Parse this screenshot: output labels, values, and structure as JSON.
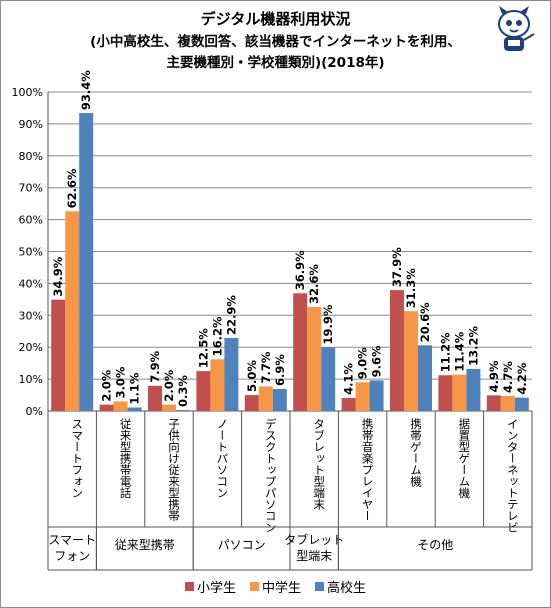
{
  "chart_data": {
    "type": "bar",
    "title": "デジタル機器利用状況",
    "subtitle_lines": [
      "(小中高校生、複数回答、該当機器でインターネットを利用、",
      "主要機種別・学校種類別)(2018年)"
    ],
    "ylim": [
      0,
      100
    ],
    "y_ticks": [
      "0%",
      "10%",
      "20%",
      "30%",
      "40%",
      "50%",
      "60%",
      "70%",
      "80%",
      "90%",
      "100%"
    ],
    "grid": true,
    "legend_position": "bottom",
    "categories": [
      "スマートフォン",
      "従来型携帯電話",
      "子供向け従来型携帯",
      "ノートパソコン",
      "デスクトップパソコン",
      "タブレット型端末",
      "携帯音楽プレイヤー",
      "携帯ゲーム機",
      "据置型ゲーム機",
      "インターネットテレビ"
    ],
    "groups": [
      {
        "label": "スマート\nフォン",
        "start": 0,
        "end": 0
      },
      {
        "label": "従来型携帯",
        "start": 1,
        "end": 2
      },
      {
        "label": "パソコン",
        "start": 3,
        "end": 4
      },
      {
        "label": "タブレット\n型端末",
        "start": 5,
        "end": 5
      },
      {
        "label": "その他",
        "start": 6,
        "end": 9
      }
    ],
    "series": [
      {
        "name": "小学生",
        "color": "#c0504d",
        "values": [
          34.9,
          2.0,
          7.9,
          12.5,
          5.0,
          36.9,
          4.1,
          37.9,
          11.2,
          4.9
        ]
      },
      {
        "name": "中学生",
        "color": "#f79646",
        "values": [
          62.6,
          3.0,
          2.0,
          16.2,
          7.7,
          32.6,
          9.0,
          31.3,
          11.4,
          4.7
        ]
      },
      {
        "name": "高校生",
        "color": "#4f81bd",
        "values": [
          93.4,
          1.1,
          0.3,
          22.9,
          6.9,
          19.9,
          9.6,
          20.6,
          13.2,
          4.2
        ]
      }
    ],
    "value_labels": [
      [
        "34.9%",
        "2.0%",
        "7.9%",
        "12.5%",
        "5.0%",
        "36.9%",
        "4.1%",
        "37.9%",
        "11.2%",
        "4.9%"
      ],
      [
        "62.6%",
        "3.0%",
        "2.0%",
        "16.2%",
        "7.7%",
        "32.6%",
        "9.0%",
        "31.3%",
        "11.4%",
        "4.7%"
      ],
      [
        "93.4%",
        "1.1%",
        "0.3%",
        "22.9%",
        "6.9%",
        "19.9%",
        "9.6%",
        "20.6%",
        "13.2%",
        "4.2%"
      ]
    ]
  }
}
